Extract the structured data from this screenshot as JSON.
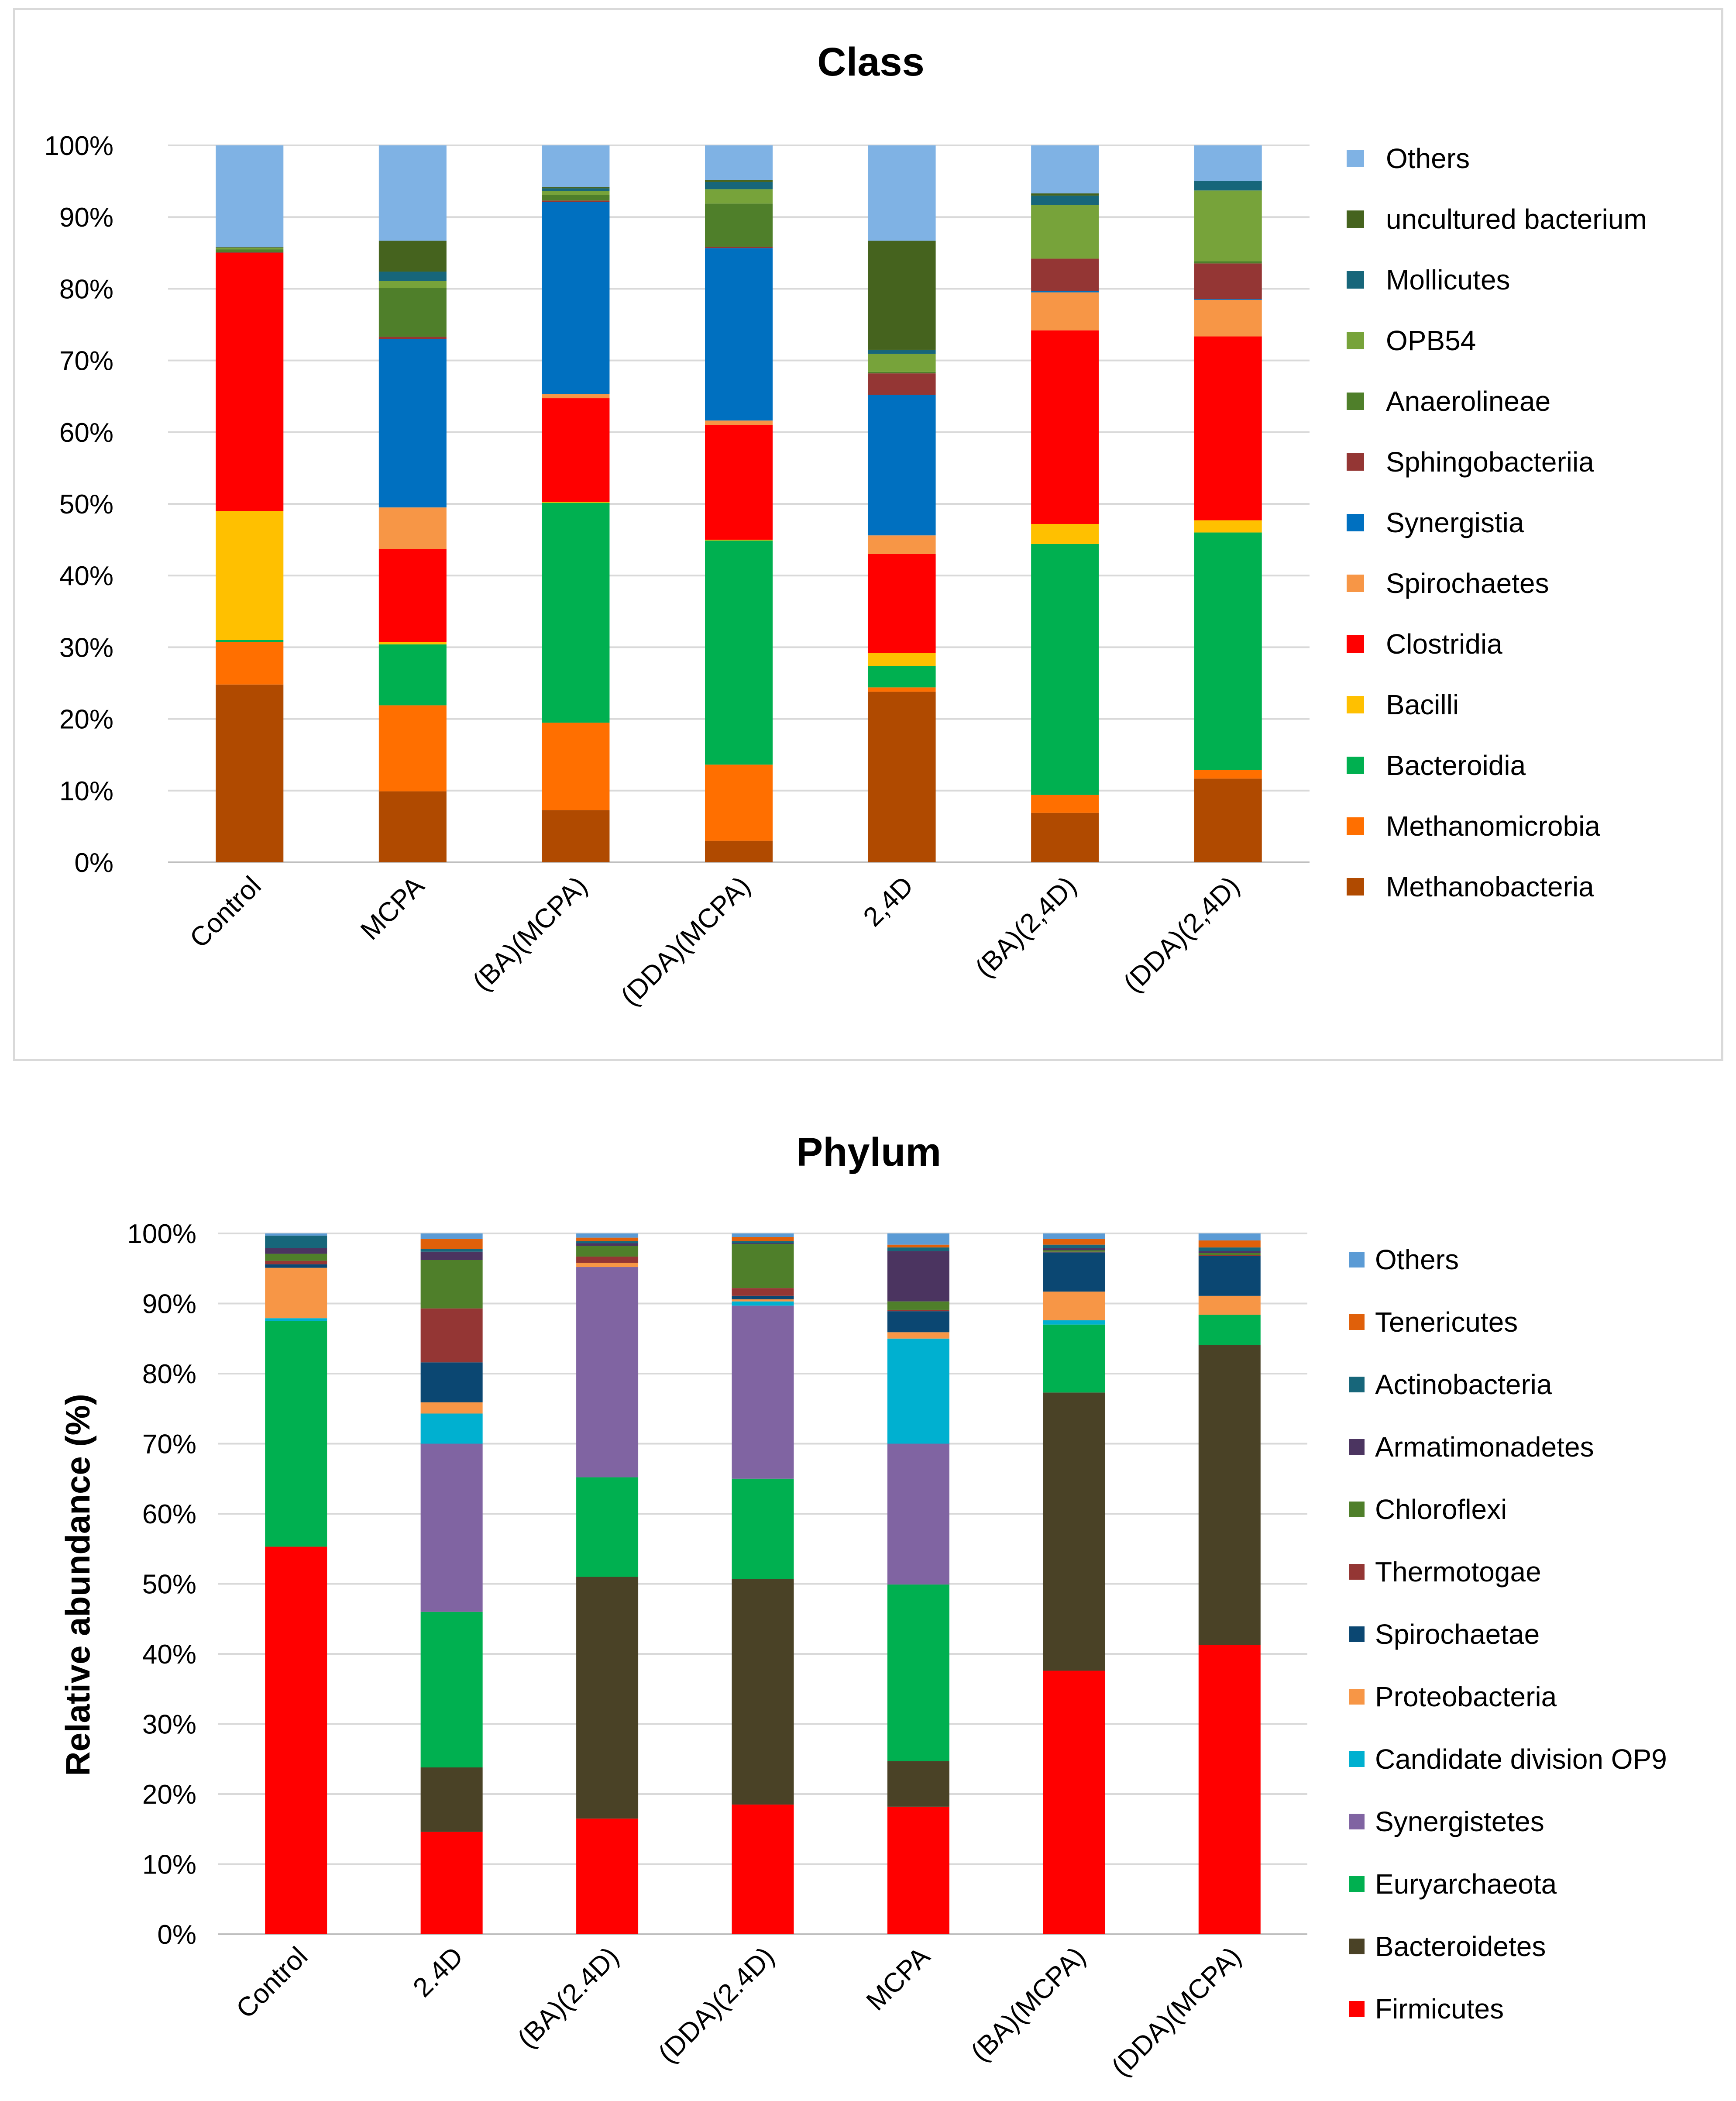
{
  "charts": [
    {
      "id": "class",
      "chart_data": {
        "type": "bar",
        "stacked": true,
        "percent": true,
        "title": "Class",
        "xlabel": "",
        "ylabel": "",
        "ylim": [
          0,
          100
        ],
        "yticks": [
          "0%",
          "10%",
          "20%",
          "30%",
          "40%",
          "50%",
          "60%",
          "70%",
          "80%",
          "90%",
          "100%"
        ],
        "categories": [
          "Control",
          "MCPA",
          "(BA)(MCPA)",
          "(DDA)(MCPA)",
          "2,4D",
          "(BA)(2,4D)",
          "(DDA)(2,4D)"
        ],
        "legend_position": "right",
        "series": [
          {
            "name": "Methanobacteria",
            "color": "#B04A00",
            "values": [
              24.8,
              9.9,
              7.3,
              3.0,
              23.8,
              6.9,
              11.7
            ]
          },
          {
            "name": "Methanomicrobia",
            "color": "#FF6F00",
            "values": [
              5.9,
              12.0,
              12.2,
              10.6,
              0.6,
              2.5,
              1.2
            ]
          },
          {
            "name": "Bacteroidia",
            "color": "#00B050",
            "values": [
              0.3,
              8.5,
              30.7,
              31.2,
              3.0,
              35.0,
              33.2
            ]
          },
          {
            "name": "Bacilli",
            "color": "#FFC000",
            "values": [
              18.0,
              0.3,
              0.1,
              0.1,
              1.8,
              2.8,
              1.7
            ]
          },
          {
            "name": "Clostridia",
            "color": "#FF0000",
            "values": [
              36.0,
              13.0,
              14.5,
              16.0,
              13.8,
              27.0,
              25.7
            ]
          },
          {
            "name": "Spirochaetes",
            "color": "#F79646",
            "values": [
              0.0,
              5.8,
              0.6,
              0.6,
              2.6,
              5.3,
              5.1
            ]
          },
          {
            "name": "Synergistia",
            "color": "#0070C0",
            "values": [
              0.0,
              23.5,
              26.8,
              24.0,
              19.6,
              0.2,
              0.1
            ]
          },
          {
            "name": "Sphingobacteriia",
            "color": "#943634",
            "values": [
              0.1,
              0.3,
              0.2,
              0.2,
              3.0,
              4.5,
              5.0
            ]
          },
          {
            "name": "Anaerolineae",
            "color": "#4F7F2A",
            "values": [
              0.4,
              6.8,
              0.8,
              6.0,
              0.2,
              0.0,
              0.3
            ]
          },
          {
            "name": "OPB54",
            "color": "#77A33A",
            "values": [
              0.2,
              1.0,
              0.5,
              2.0,
              2.5,
              7.5,
              9.9
            ]
          },
          {
            "name": "Mollicutes",
            "color": "#17667A",
            "values": [
              0.0,
              1.3,
              0.4,
              1.0,
              0.6,
              1.3,
              1.3
            ]
          },
          {
            "name": "uncultured bacterium",
            "color": "#45631E",
            "values": [
              0.1,
              4.3,
              0.2,
              0.3,
              15.2,
              0.3,
              0.0
            ]
          },
          {
            "name": "Others",
            "color": "#7FB2E4",
            "values": [
              14.2,
              13.3,
              5.8,
              4.8,
              13.3,
              6.7,
              5.0
            ]
          }
        ]
      }
    },
    {
      "id": "phylum",
      "chart_data": {
        "type": "bar",
        "stacked": true,
        "percent": true,
        "title": "Phylum",
        "xlabel": "",
        "ylabel": "Relative abundance (%)",
        "ylim": [
          0,
          100
        ],
        "yticks": [
          "0%",
          "10%",
          "20%",
          "30%",
          "40%",
          "50%",
          "60%",
          "70%",
          "80%",
          "90%",
          "100%"
        ],
        "categories": [
          "Control",
          "2.4D",
          "(BA)(2.4D)",
          "(DDA)(2.4D)",
          "MCPA",
          "(BA)(MCPA)",
          "(DDA)(MCPA)"
        ],
        "legend_position": "right",
        "series": [
          {
            "name": "Firmicutes",
            "color": "#FF0000",
            "values": [
              55.3,
              14.6,
              16.5,
              18.5,
              18.2,
              37.6,
              41.3
            ]
          },
          {
            "name": "Bacteroidetes",
            "color": "#4A4226",
            "values": [
              0.0,
              9.2,
              34.5,
              32.2,
              6.5,
              39.7,
              42.8
            ]
          },
          {
            "name": "Euryarchaeota",
            "color": "#00B050",
            "values": [
              32.2,
              22.2,
              14.2,
              14.3,
              25.2,
              9.7,
              4.3
            ]
          },
          {
            "name": "Synergistetes",
            "color": "#8064A2",
            "values": [
              0.0,
              24.0,
              30.0,
              24.7,
              20.1,
              0.0,
              0.0
            ]
          },
          {
            "name": "Candidate division OP9",
            "color": "#00B0D0",
            "values": [
              0.4,
              4.3,
              0.0,
              0.6,
              15.0,
              0.6,
              0.0
            ]
          },
          {
            "name": "Proteobacteria",
            "color": "#F79646",
            "values": [
              7.2,
              1.6,
              0.6,
              0.3,
              0.9,
              4.1,
              2.7
            ]
          },
          {
            "name": "Spirochaetae",
            "color": "#0B4772",
            "values": [
              0.5,
              5.7,
              0.0,
              0.5,
              3.0,
              5.6,
              5.7
            ]
          },
          {
            "name": "Thermotogae",
            "color": "#943634",
            "values": [
              0.5,
              7.7,
              0.9,
              1.1,
              0.2,
              0.1,
              0.1
            ]
          },
          {
            "name": "Chloroflexi",
            "color": "#4F7F2A",
            "values": [
              1.0,
              6.9,
              1.5,
              6.3,
              1.2,
              0.2,
              0.3
            ]
          },
          {
            "name": "Armatimonadetes",
            "color": "#4B3460",
            "values": [
              0.8,
              1.2,
              0.4,
              0.1,
              7.2,
              0.3,
              0.3
            ]
          },
          {
            "name": "Actinobacteria",
            "color": "#17667A",
            "values": [
              1.8,
              0.4,
              0.3,
              0.3,
              0.5,
              0.5,
              0.5
            ]
          },
          {
            "name": "Tenericutes",
            "color": "#E0600A",
            "values": [
              0.0,
              1.4,
              0.5,
              0.6,
              0.4,
              0.8,
              1.0
            ]
          },
          {
            "name": "Others",
            "color": "#5B9BD5",
            "values": [
              0.3,
              0.8,
              0.6,
              0.5,
              1.6,
              0.8,
              1.0
            ]
          }
        ]
      }
    }
  ]
}
